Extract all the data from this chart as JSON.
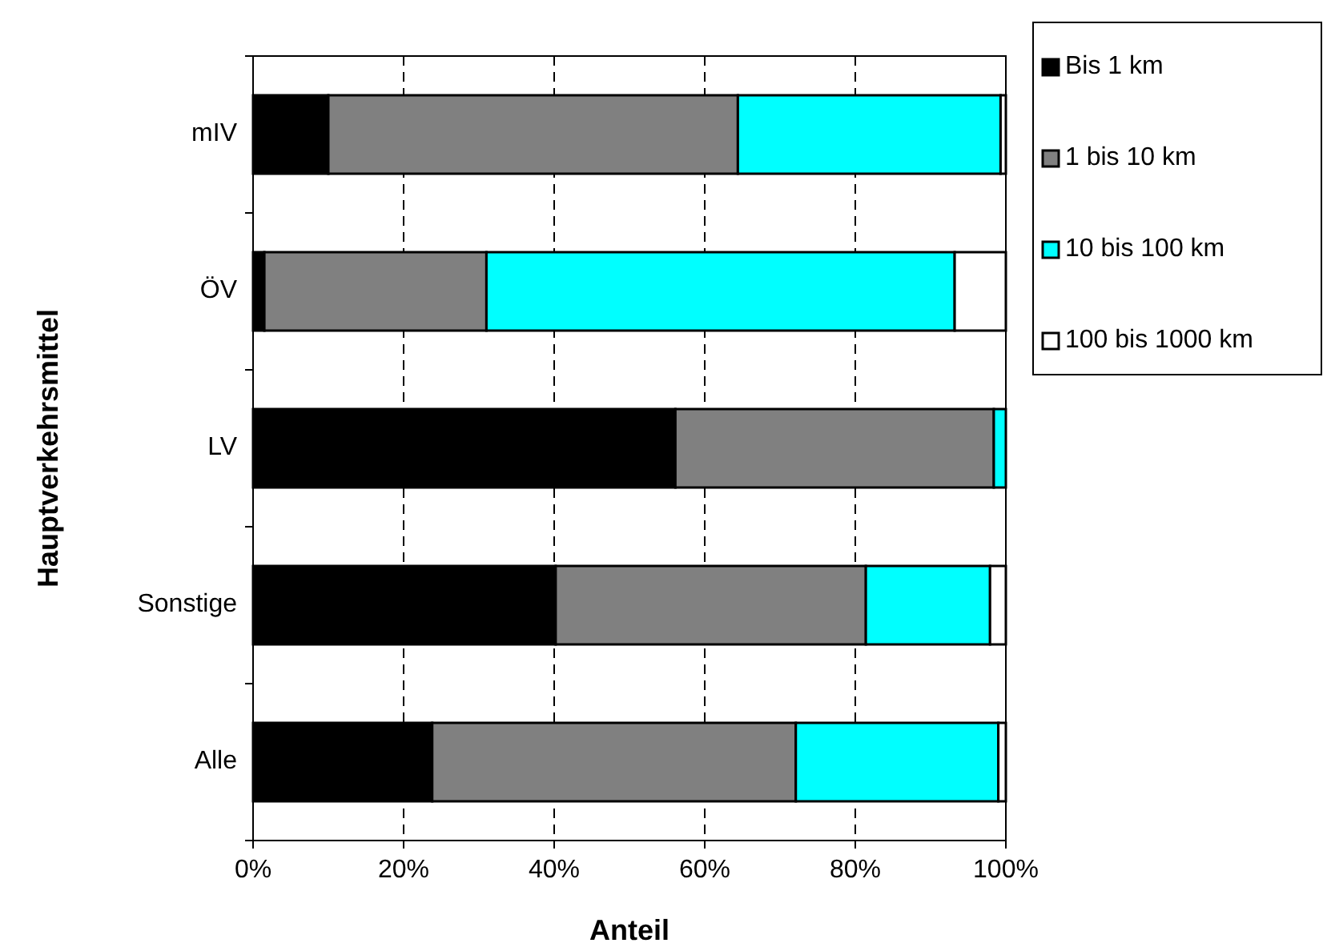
{
  "chart_data": {
    "type": "bar",
    "orientation": "horizontal",
    "stacked": true,
    "xlabel": "Anteil",
    "ylabel": "Hauptverkehrsmittel",
    "categories": [
      "mIV",
      "ÖV",
      "LV",
      "Sonstige",
      "Alle"
    ],
    "series": [
      {
        "name": "Bis 1 km",
        "color": "#000000",
        "values": [
          10,
          1.5,
          56.1,
          40.2,
          23.8
        ]
      },
      {
        "name": "1 bis 10 km",
        "color": "#808080",
        "values": [
          54.4,
          29.5,
          42.3,
          41.2,
          48.3
        ]
      },
      {
        "name": "10 bis 100 km",
        "color": "#00ffff",
        "values": [
          34.9,
          62.2,
          1.6,
          16.5,
          26.9
        ]
      },
      {
        "name": "100 bis 1000 km",
        "color": "#ffffff",
        "values": [
          0.7,
          6.8,
          0,
          2.1,
          1.0
        ]
      }
    ],
    "xlim": [
      0,
      100
    ],
    "xticks": [
      {
        "value": 0,
        "label": "0%"
      },
      {
        "value": 20,
        "label": "20%"
      },
      {
        "value": 40,
        "label": "40%"
      },
      {
        "value": 60,
        "label": "60%"
      },
      {
        "value": 80,
        "label": "80%"
      },
      {
        "value": 100,
        "label": "100%"
      }
    ],
    "grid": "x",
    "legend": "right"
  }
}
